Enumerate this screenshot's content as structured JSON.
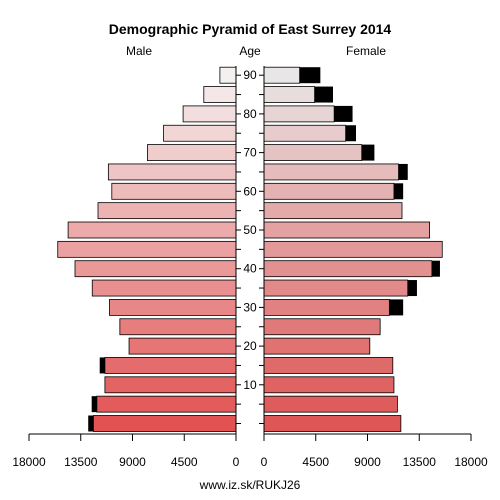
{
  "chart_data": {
    "type": "bar",
    "title": "Demographic Pyramid of East Surrey 2014",
    "left_label": "Male",
    "center_label": "Age",
    "right_label": "Female",
    "source": "www.iz.sk/RUKJ26",
    "age_groups": [
      "0-4",
      "5-9",
      "10-14",
      "15-19",
      "20-24",
      "25-29",
      "30-34",
      "35-39",
      "40-44",
      "45-49",
      "50-54",
      "55-59",
      "60-64",
      "65-69",
      "70-74",
      "75-79",
      "80-84",
      "85-89",
      "90+"
    ],
    "age_tick_labels": [
      "10",
      "20",
      "30",
      "40",
      "50",
      "60",
      "70",
      "80",
      "90"
    ],
    "x_tick_labels_male": [
      "18000",
      "13500",
      "9000",
      "4500",
      "0"
    ],
    "x_tick_labels_female": [
      "0",
      "4500",
      "9000",
      "13500",
      "18000"
    ],
    "xlim": [
      0,
      18000
    ],
    "series": [
      {
        "name": "Male",
        "values": [
          12400,
          12100,
          11400,
          11400,
          9300,
          10100,
          11000,
          12500,
          14000,
          15500,
          14600,
          12000,
          10800,
          11100,
          7700,
          6300,
          4600,
          2800,
          1400
        ],
        "excess": [
          450,
          450,
          0,
          450,
          0,
          0,
          0,
          0,
          0,
          0,
          0,
          0,
          0,
          0,
          0,
          0,
          0,
          0,
          0
        ]
      },
      {
        "name": "Female",
        "values": [
          11900,
          11600,
          11300,
          11200,
          9200,
          10100,
          10900,
          12500,
          14600,
          15500,
          14400,
          12000,
          11300,
          11700,
          8500,
          7100,
          6100,
          4400,
          3100
        ],
        "excess": [
          0,
          0,
          0,
          0,
          0,
          0,
          1200,
          800,
          700,
          0,
          0,
          0,
          800,
          800,
          1100,
          900,
          1600,
          1600,
          1800
        ]
      }
    ],
    "colors": {
      "excess": "#000000",
      "frame": "#000000",
      "background": "#ffffff"
    },
    "grid": false
  }
}
